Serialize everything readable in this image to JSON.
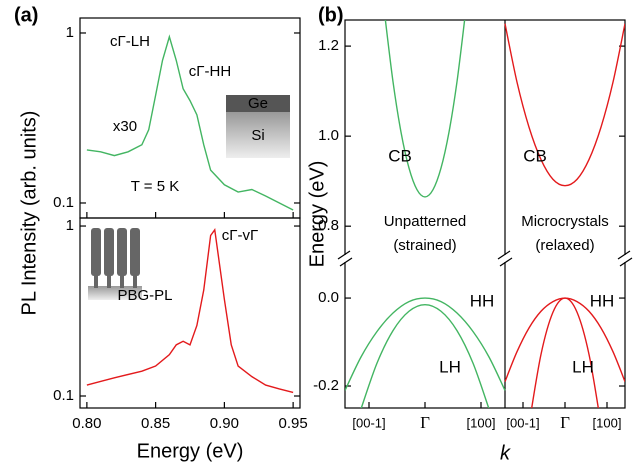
{
  "chart_data": [
    {
      "type": "line",
      "panel_label": "(a)",
      "x_label": "Energy (eV)",
      "y_label": "PL Intensity (arb. units)",
      "log_y": true,
      "xlim": [
        0.795,
        0.955
      ],
      "xticks": [
        {
          "value": 0.8,
          "label": "0.80"
        },
        {
          "value": 0.85,
          "label": "0.85"
        },
        {
          "value": 0.9,
          "label": "0.90"
        },
        {
          "value": 0.95,
          "label": "0.95"
        }
      ],
      "panels": [
        {
          "ylim": [
            0.0816,
            1.225
          ],
          "yticks": [
            0.1,
            1
          ],
          "annotations": [
            "cΓ-LH",
            "cΓ-HH",
            "x30",
            "T = 5 K"
          ],
          "inset_labels": [
            "Ge",
            "Si"
          ],
          "series": [
            {
              "color": "#43b562",
              "x": [
                0.8,
                0.81,
                0.82,
                0.83,
                0.84,
                0.845,
                0.85,
                0.855,
                0.86,
                0.865,
                0.87,
                0.875,
                0.88,
                0.885,
                0.89,
                0.9,
                0.91,
                0.92,
                0.93,
                0.94,
                0.95
              ],
              "values": [
                0.205,
                0.2,
                0.19,
                0.2,
                0.22,
                0.27,
                0.43,
                0.69,
                0.95,
                0.69,
                0.47,
                0.4,
                0.33,
                0.22,
                0.156,
                0.128,
                0.116,
                0.12,
                0.11,
                0.1,
                0.091
              ]
            }
          ]
        },
        {
          "ylim": [
            0.085,
            1.115
          ],
          "yticks": [
            0.1,
            1
          ],
          "annotations": [
            "cΓ-vΓ",
            "PBG-PL"
          ],
          "series": [
            {
              "color": "#e31a1c",
              "x": [
                0.8,
                0.82,
                0.84,
                0.85,
                0.86,
                0.865,
                0.87,
                0.875,
                0.88,
                0.885,
                0.89,
                0.893,
                0.9,
                0.905,
                0.91,
                0.92,
                0.93,
                0.94,
                0.95
              ],
              "values": [
                0.116,
                0.128,
                0.14,
                0.15,
                0.175,
                0.2,
                0.21,
                0.2,
                0.26,
                0.42,
                0.88,
                0.95,
                0.37,
                0.2,
                0.15,
                0.13,
                0.116,
                0.11,
                0.105
              ]
            }
          ]
        }
      ]
    },
    {
      "type": "band",
      "panel_label": "(b)",
      "x_label": "k",
      "y_label": "Energy (eV)",
      "xlim": [
        -1,
        1
      ],
      "xticks": [
        {
          "value": -0.7,
          "label": "[00-1]"
        },
        {
          "value": 0,
          "label": "Γ"
        },
        {
          "value": 0.7,
          "label": "[100]"
        }
      ],
      "y_segments": [
        {
          "ylim": [
            0.736,
            1.258
          ],
          "yticks": [
            0.8,
            {
              "value": 1,
              "label": "1.0"
            },
            1.2
          ]
        },
        {
          "ylim": [
            -0.25,
            0.082
          ],
          "yticks": [
            -0.2,
            {
              "value": 0,
              "label": "0.0"
            }
          ]
        }
      ],
      "columns": [
        {
          "caption": [
            "Unpatterned",
            "(strained)"
          ],
          "annotations": [
            "CB",
            "HH",
            "LH"
          ],
          "series": [
            {
              "segment": 0,
              "color": "#43b562",
              "x": [
                -0.5,
                -0.4,
                -0.3,
                -0.2,
                -0.1,
                0,
                0.1,
                0.2,
                0.3,
                0.4,
                0.5
              ],
              "values": [
                1.265,
                1.121,
                1.009,
                0.929,
                0.881,
                0.865,
                0.881,
                0.929,
                1.009,
                1.121,
                1.265
              ]
            },
            {
              "segment": 1,
              "color": "#43b562",
              "x": [
                -1,
                -0.8,
                -0.6,
                -0.4,
                -0.2,
                0,
                0.2,
                0.4,
                0.6,
                0.8,
                1
              ],
              "values": [
                -0.21,
                -0.134,
                -0.076,
                -0.034,
                -0.008,
                0,
                -0.008,
                -0.034,
                -0.076,
                -0.134,
                -0.21
              ]
            },
            {
              "segment": 1,
              "color": "#43b562",
              "x": [
                -0.8,
                -0.6,
                -0.4,
                -0.2,
                0,
                0.2,
                0.4,
                0.6,
                0.8
              ],
              "values": [
                -0.252,
                -0.148,
                -0.074,
                -0.03,
                -0.015,
                -0.03,
                -0.074,
                -0.148,
                -0.252
              ]
            }
          ]
        },
        {
          "caption": [
            "Microcrystals",
            "(relaxed)"
          ],
          "annotations": [
            "CB",
            "HH",
            "LH"
          ],
          "series": [
            {
              "segment": 0,
              "color": "#e31a1c",
              "x": [
                -1,
                -0.8,
                -0.6,
                -0.4,
                -0.2,
                0,
                0.2,
                0.4,
                0.6,
                0.8,
                1
              ],
              "values": [
                1.25,
                1.12,
                1.02,
                0.948,
                0.904,
                0.89,
                0.904,
                0.948,
                1.02,
                1.12,
                1.25
              ]
            },
            {
              "segment": 1,
              "color": "#e31a1c",
              "x": [
                -1,
                -0.8,
                -0.6,
                -0.4,
                -0.2,
                0,
                0.2,
                0.4,
                0.6,
                0.8,
                1
              ],
              "values": [
                -0.19,
                -0.122,
                -0.068,
                -0.03,
                -0.008,
                0,
                -0.008,
                -0.03,
                -0.068,
                -0.122,
                -0.19
              ]
            },
            {
              "segment": 1,
              "color": "#e31a1c",
              "x": [
                -0.6,
                -0.4,
                -0.2,
                0,
                0.2,
                0.4,
                0.6
              ],
              "values": [
                -0.288,
                -0.128,
                -0.032,
                0,
                -0.032,
                -0.128,
                -0.288
              ]
            }
          ]
        }
      ]
    }
  ]
}
